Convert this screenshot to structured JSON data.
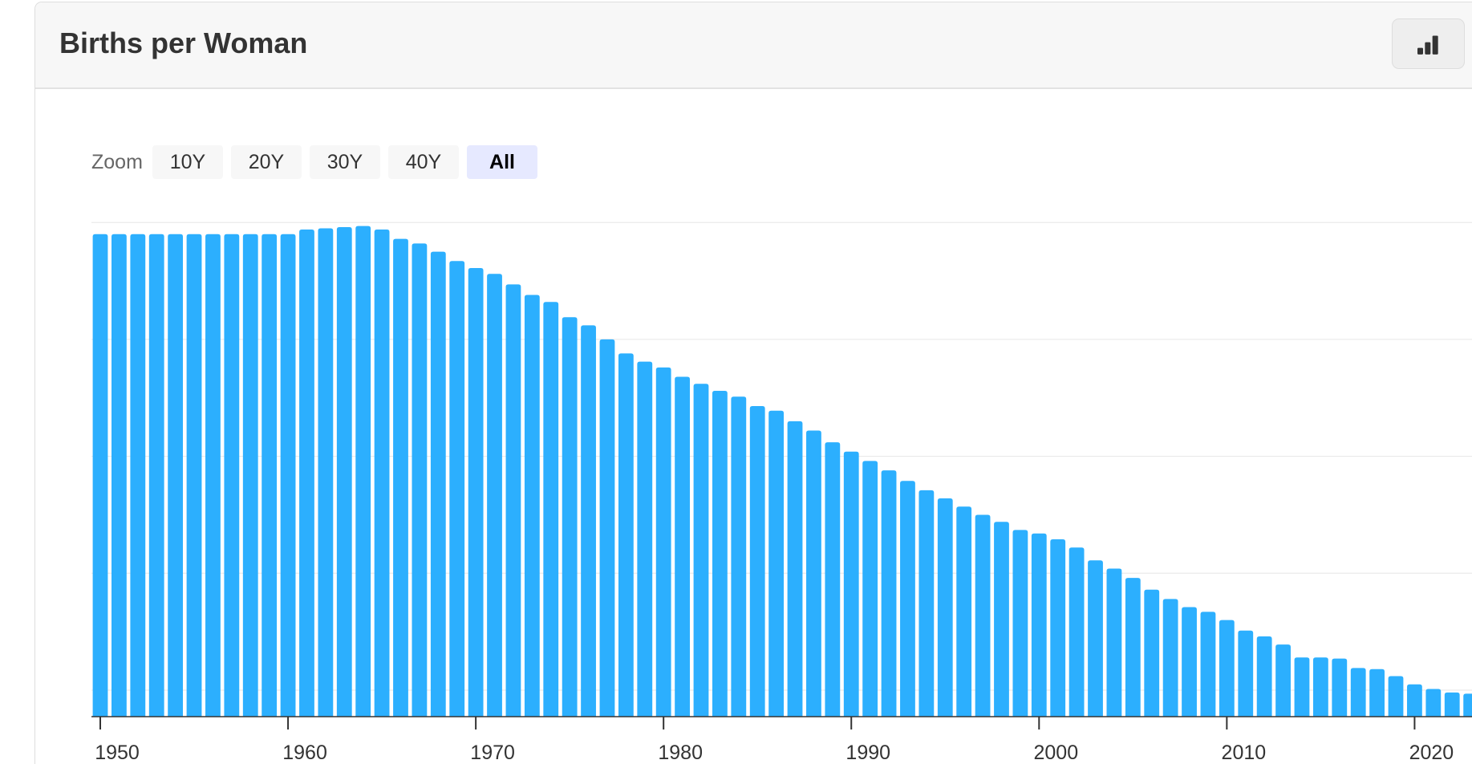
{
  "header": {
    "title": "Births per Woman",
    "chart_type_icon": "bar-chart-icon"
  },
  "zoom": {
    "label": "Zoom",
    "buttons": [
      "10Y",
      "20Y",
      "30Y",
      "40Y",
      "All"
    ],
    "selected": "All"
  },
  "colors": {
    "bar": "#2caffe",
    "grid": "#e6e6e6",
    "axis": "#333333",
    "active_zoom": "#e6e9ff"
  },
  "chart_data": {
    "type": "bar",
    "title": "Births per Woman",
    "xlabel": "",
    "ylabel": "",
    "x_tick_labels": [
      "1950",
      "1960",
      "1970",
      "1980",
      "1990",
      "2000",
      "2010",
      "2020"
    ],
    "ylim": [
      1.78,
      6.0
    ],
    "grid": true,
    "y_gridlines": [
      2,
      3,
      4,
      5,
      6
    ],
    "values_note_none": "",
    "x": [
      1950,
      1951,
      1952,
      1953,
      1954,
      1955,
      1956,
      1957,
      1958,
      1959,
      1960,
      1961,
      1962,
      1963,
      1964,
      1965,
      1966,
      1967,
      1968,
      1969,
      1970,
      1971,
      1972,
      1973,
      1974,
      1975,
      1976,
      1977,
      1978,
      1979,
      1980,
      1981,
      1982,
      1983,
      1984,
      1985,
      1986,
      1987,
      1988,
      1989,
      1990,
      1991,
      1992,
      1993,
      1994,
      1995,
      1996,
      1997,
      1998,
      1999,
      2000,
      2001,
      2002,
      2003,
      2004,
      2005,
      2006,
      2007,
      2008,
      2009,
      2010,
      2011,
      2012,
      2013,
      2014,
      2015,
      2016,
      2017,
      2018,
      2019,
      2020,
      2021,
      2022,
      2023
    ],
    "values": [
      5.9,
      5.9,
      5.9,
      5.9,
      5.9,
      5.9,
      5.9,
      5.9,
      5.9,
      5.9,
      5.9,
      5.94,
      5.95,
      5.96,
      5.97,
      5.94,
      5.86,
      5.82,
      5.75,
      5.67,
      5.61,
      5.56,
      5.47,
      5.38,
      5.32,
      5.19,
      5.12,
      5.0,
      4.88,
      4.81,
      4.76,
      4.68,
      4.62,
      4.56,
      4.51,
      4.43,
      4.39,
      4.3,
      4.22,
      4.12,
      4.04,
      3.96,
      3.88,
      3.79,
      3.71,
      3.64,
      3.57,
      3.5,
      3.44,
      3.37,
      3.34,
      3.29,
      3.22,
      3.11,
      3.04,
      2.96,
      2.86,
      2.78,
      2.71,
      2.67,
      2.6,
      2.51,
      2.46,
      2.39,
      2.28,
      2.28,
      2.27,
      2.19,
      2.18,
      2.12,
      2.05,
      2.01,
      1.98,
      1.97
    ]
  }
}
